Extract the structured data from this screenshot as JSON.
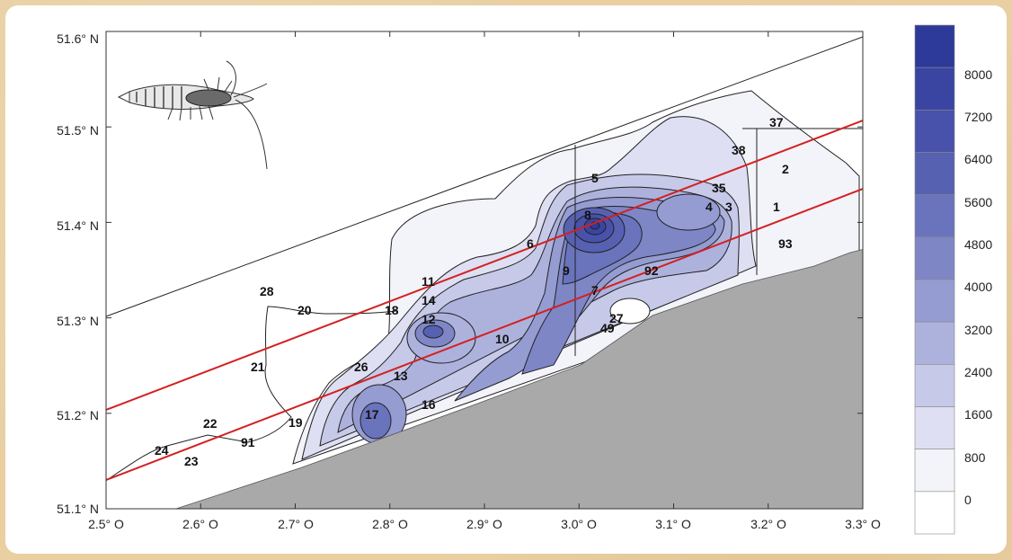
{
  "map": {
    "lat_labels": [
      "51.6° N",
      "51.5° N",
      "51.4° N",
      "51.3° N",
      "51.2° N",
      "51.1° N"
    ],
    "lon_labels": [
      "2.5° O",
      "2.6° O",
      "2.7° O",
      "2.8° O",
      "2.9° O",
      "3.0° O",
      "3.1° O",
      "3.2° O",
      "3.3° O"
    ],
    "stations": [
      "37",
      "38",
      "2",
      "35",
      "4",
      "3",
      "1",
      "93",
      "5",
      "8",
      "6",
      "9",
      "92",
      "7",
      "27",
      "49",
      "11",
      "14",
      "12",
      "18",
      "10",
      "28",
      "20",
      "21",
      "26",
      "13",
      "16",
      "17",
      "19",
      "22",
      "91",
      "24",
      "23"
    ],
    "land_color": "#a9a9a9",
    "transect_color": "#d42020",
    "contour_color": "#4a4fa8",
    "icon": "shrimp-icon"
  },
  "legend": {
    "levels": [
      "8000",
      "7200",
      "6400",
      "5600",
      "4800",
      "4000",
      "3200",
      "2400",
      "1600",
      "800",
      "0"
    ],
    "colors": [
      "#2e3a9a",
      "#3a45a2",
      "#4852aa",
      "#5761b2",
      "#6a74bc",
      "#7e86c6",
      "#959cd2",
      "#adb2dd",
      "#c6c9e8",
      "#dedff2",
      "#f3f3fa",
      "#ffffff"
    ]
  }
}
